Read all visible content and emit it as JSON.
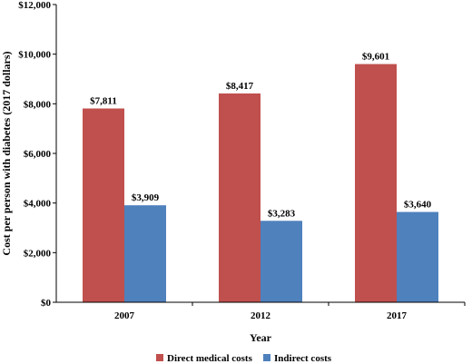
{
  "chart_data": {
    "type": "bar",
    "categories": [
      "2007",
      "2012",
      "2017"
    ],
    "series": [
      {
        "name": "Direct medical costs",
        "values": [
          7811,
          8417,
          9601
        ],
        "labels": [
          "$7,811",
          "$8,417",
          "$9,601"
        ],
        "color": "#c0504d"
      },
      {
        "name": "Indirect costs",
        "values": [
          3909,
          3283,
          3640
        ],
        "labels": [
          "$3,909",
          "$3,283",
          "$3,640"
        ],
        "color": "#4f81bd"
      }
    ],
    "xlabel": "Year",
    "ylabel": "Cost per person with diabetes (2017 dollars)",
    "ylim": [
      0,
      12000
    ],
    "yticks": [
      0,
      2000,
      4000,
      6000,
      8000,
      10000,
      12000
    ],
    "ytick_labels": [
      "$0",
      "$2,000",
      "$4,000",
      "$6,000",
      "$8,000",
      "$10,000",
      "$12,000"
    ],
    "grid": false,
    "legend_position": "bottom"
  }
}
